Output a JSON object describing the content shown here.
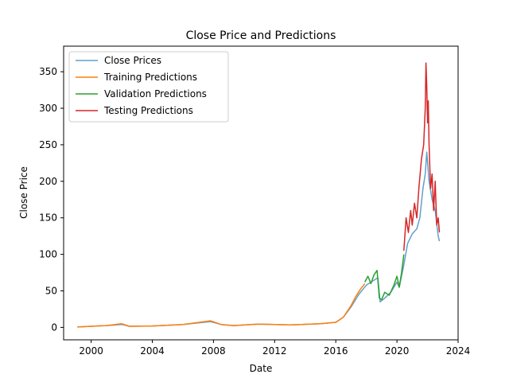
{
  "chart_data": {
    "type": "line",
    "title": "Close Price and Predictions",
    "xlabel": "Date",
    "ylabel": "Close Price",
    "xlim": [
      1998.2,
      2024
    ],
    "ylim": [
      -17,
      385
    ],
    "xticks": [
      2000,
      2004,
      2008,
      2012,
      2016,
      2020,
      2024
    ],
    "yticks": [
      0,
      50,
      100,
      150,
      200,
      250,
      300,
      350
    ],
    "grid": false,
    "legend_position": "top-left",
    "series": [
      {
        "name": "Close Prices",
        "color": "#1f77b4",
        "alpha": 0.7,
        "x": [
          1999.1,
          2000.0,
          2001.0,
          2002.0,
          2002.5,
          2004.0,
          2006.0,
          2007.8,
          2008.5,
          2009.3,
          2010.5,
          2011.0,
          2012.0,
          2013.0,
          2015.0,
          2016.0,
          2016.5,
          2017.0,
          2017.5,
          2018.0,
          2018.3,
          2018.75,
          2018.9,
          2019.2,
          2019.6,
          2020.0,
          2020.15,
          2020.4,
          2020.7,
          2021.0,
          2021.3,
          2021.5,
          2021.7,
          2021.85,
          2021.95,
          2022.1,
          2022.3,
          2022.5,
          2022.7,
          2022.78
        ],
        "values": [
          0.5,
          1.5,
          2.5,
          4,
          1.5,
          2,
          4,
          8,
          4,
          2.5,
          4,
          4.5,
          4,
          3.5,
          5,
          7,
          14,
          28,
          45,
          58,
          62,
          68,
          35,
          40,
          48,
          62,
          55,
          80,
          115,
          128,
          135,
          150,
          190,
          210,
          240,
          200,
          175,
          160,
          125,
          118
        ]
      },
      {
        "name": "Training Predictions",
        "color": "#ff7f0e",
        "x": [
          1999.1,
          2000.0,
          2001.0,
          2002.0,
          2002.5,
          2004.0,
          2006.0,
          2007.8,
          2008.5,
          2009.3,
          2010.5,
          2011.0,
          2012.0,
          2013.0,
          2015.0,
          2016.0,
          2016.5,
          2017.0,
          2017.3,
          2017.6,
          2017.9
        ],
        "values": [
          0.5,
          1.5,
          2.5,
          5,
          1.5,
          2,
          4,
          9,
          4,
          2.5,
          4,
          4.5,
          4,
          3.5,
          5,
          7,
          14,
          30,
          42,
          52,
          60
        ]
      },
      {
        "name": "Validation Predictions",
        "color": "#2ca02c",
        "x": [
          2017.9,
          2018.1,
          2018.3,
          2018.5,
          2018.7,
          2018.85,
          2019.0,
          2019.2,
          2019.5,
          2019.8,
          2020.0,
          2020.15,
          2020.3,
          2020.45
        ],
        "values": [
          62,
          70,
          60,
          72,
          78,
          40,
          38,
          48,
          44,
          58,
          70,
          55,
          75,
          100
        ]
      },
      {
        "name": "Testing Predictions",
        "color": "#d62728",
        "x": [
          2020.45,
          2020.6,
          2020.75,
          2020.9,
          2021.0,
          2021.15,
          2021.3,
          2021.45,
          2021.6,
          2021.75,
          2021.85,
          2021.9,
          2021.95,
          2022.0,
          2022.05,
          2022.1,
          2022.2,
          2022.3,
          2022.4,
          2022.5,
          2022.6,
          2022.7,
          2022.78
        ],
        "values": [
          105,
          150,
          130,
          160,
          140,
          170,
          150,
          195,
          230,
          250,
          300,
          362,
          330,
          280,
          310,
          250,
          190,
          210,
          160,
          200,
          140,
          150,
          130
        ]
      }
    ]
  }
}
